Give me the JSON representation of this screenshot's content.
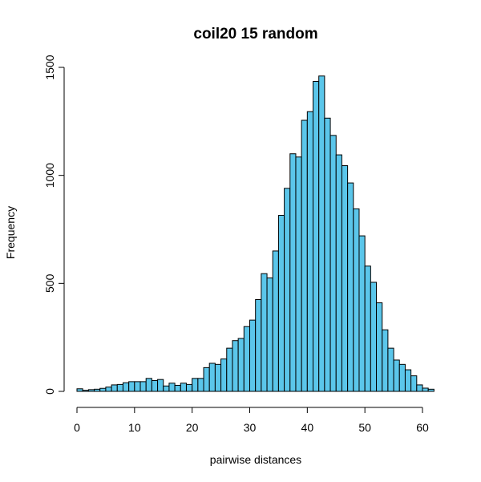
{
  "chart_data": {
    "type": "bar",
    "title": "coil20 15 random",
    "xlabel": "pairwise distances",
    "ylabel": "Frequency",
    "bar_color": "#5BC6EA",
    "xlim": [
      0,
      62
    ],
    "ylim": [
      0,
      1500
    ],
    "x_ticks": [
      0,
      10,
      20,
      30,
      40,
      50,
      60
    ],
    "y_ticks": [
      0,
      500,
      1000,
      1500
    ],
    "bin_width": 1,
    "bin_start": 0,
    "values": [
      12,
      5,
      8,
      10,
      14,
      20,
      30,
      32,
      40,
      45,
      45,
      45,
      60,
      50,
      55,
      25,
      38,
      28,
      38,
      32,
      60,
      60,
      110,
      130,
      125,
      150,
      200,
      235,
      245,
      300,
      330,
      425,
      545,
      525,
      650,
      815,
      940,
      1100,
      1085,
      1255,
      1295,
      1435,
      1460,
      1265,
      1185,
      1095,
      1045,
      965,
      845,
      720,
      580,
      505,
      410,
      285,
      200,
      145,
      125,
      100,
      72,
      30,
      15,
      10
    ]
  }
}
